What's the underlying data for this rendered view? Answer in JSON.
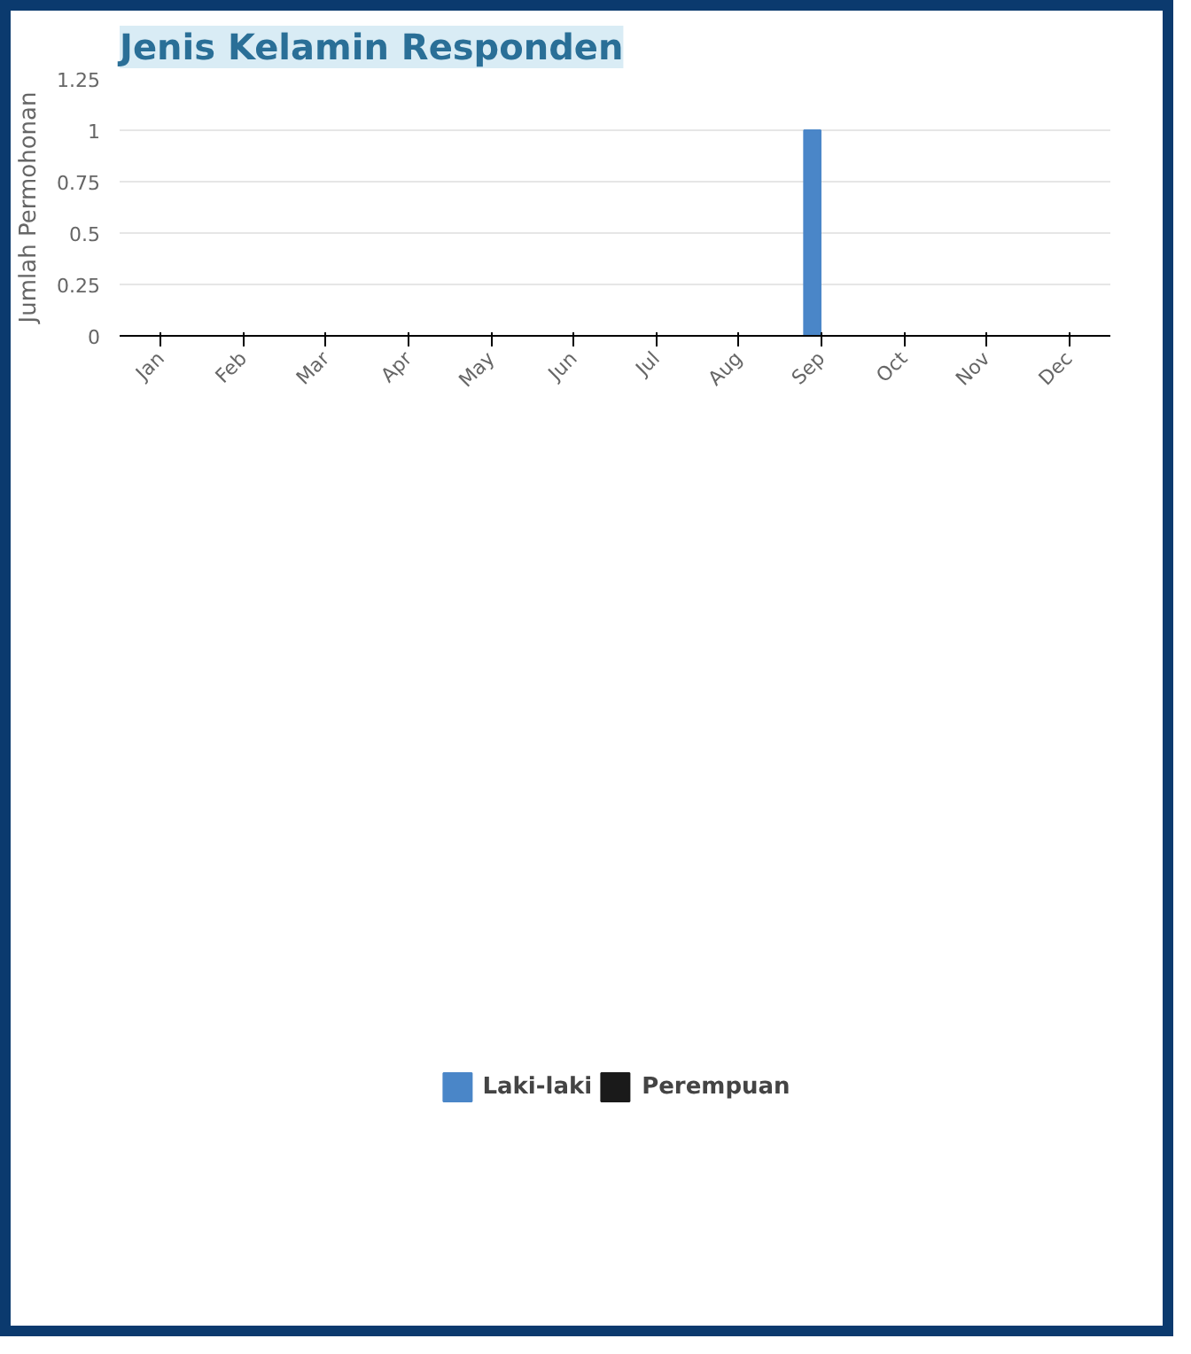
{
  "chart_data": {
    "type": "bar",
    "title": "Jenis Kelamin Responden",
    "ylabel": "Jumlah Permohonan",
    "categories": [
      "Jan",
      "Feb",
      "Mar",
      "Apr",
      "May",
      "Jun",
      "Jul",
      "Aug",
      "Sep",
      "Oct",
      "Nov",
      "Dec"
    ],
    "series": [
      {
        "name": "Laki-laki",
        "color": "#4a86c8",
        "values": [
          0,
          0,
          0,
          0,
          0,
          0,
          0,
          0,
          1,
          0,
          0,
          0
        ]
      },
      {
        "name": "Perempuan",
        "color": "#1a1a1a",
        "values": [
          0,
          0,
          0,
          0,
          0,
          0,
          0,
          0,
          0,
          0,
          0,
          0
        ]
      }
    ],
    "ylim": [
      0,
      1.25
    ],
    "yticks": [
      0,
      0.25,
      0.5,
      0.75,
      1,
      1.25
    ],
    "grid": "y",
    "legend": "bottom"
  }
}
